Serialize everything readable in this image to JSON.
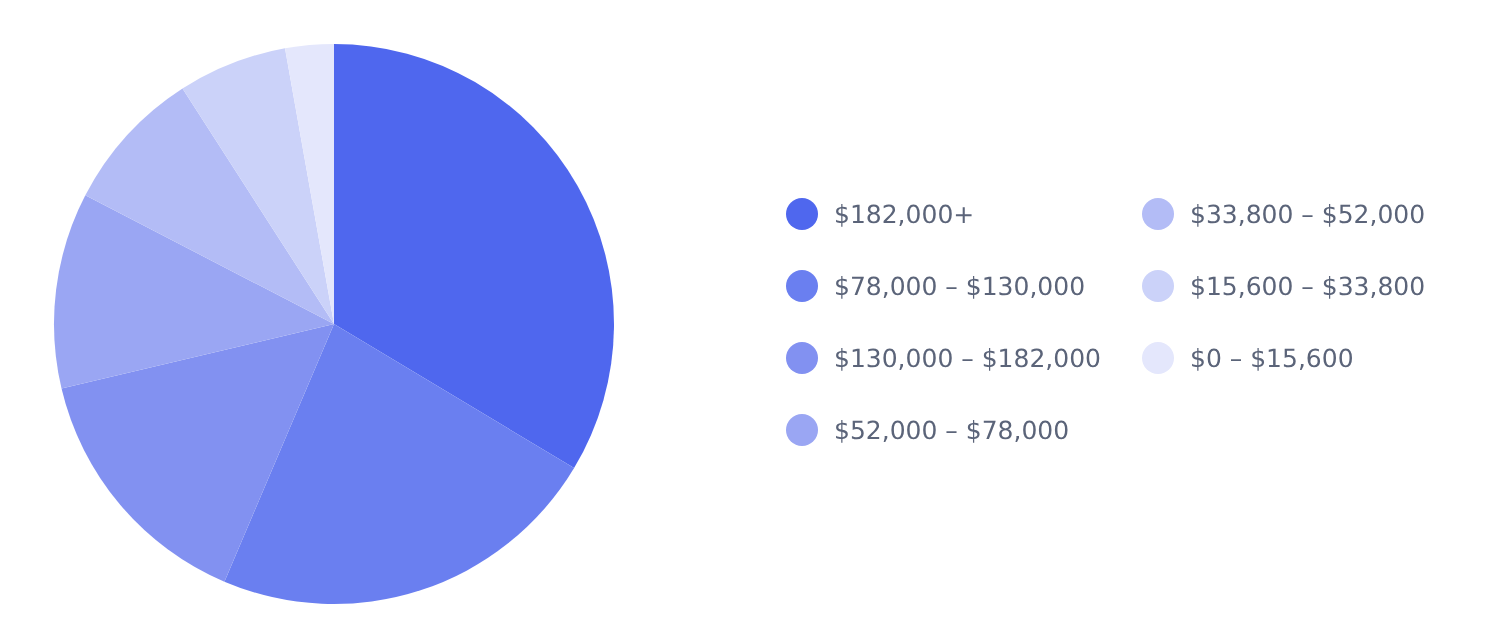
{
  "chart_data": {
    "type": "pie",
    "categories": [
      "$182,000+",
      "$78,000 – $130,000",
      "$130,000 – $182,000",
      "$52,000 – $78,000",
      "$33,800 – $52,000",
      "$15,600 – $33,800",
      "$0 – $15,600"
    ],
    "values": [
      33.6,
      22.8,
      14.9,
      11.3,
      8.3,
      6.3,
      2.8
    ],
    "colors": [
      "#4f67ee",
      "#6a7ff0",
      "#8291f1",
      "#9aa6f3",
      "#b3bcf6",
      "#cbd2f9",
      "#e4e7fc"
    ],
    "legend": "right"
  }
}
